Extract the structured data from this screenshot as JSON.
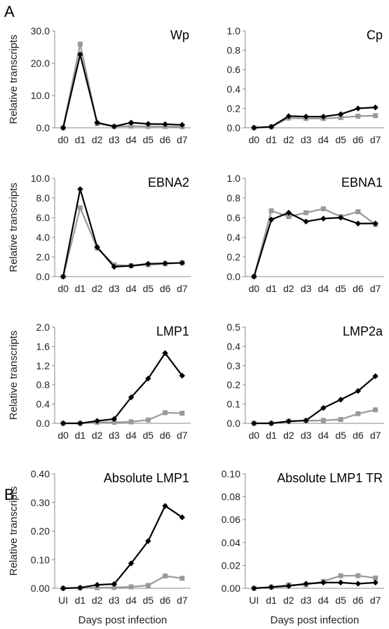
{
  "panel_labels": [
    "A",
    "B"
  ],
  "chart_data": [
    {
      "type": "line",
      "title": "Wp",
      "ylabel": "Relative transcripts",
      "xlabel": "",
      "categories": [
        "d0",
        "d1",
        "d2",
        "d3",
        "d4",
        "d5",
        "d6",
        "d7"
      ],
      "ylim": [
        0,
        30
      ],
      "yticks": [
        "0.0",
        "10.0",
        "20.0",
        "30.0"
      ],
      "grid": false,
      "series": [
        {
          "color": "#000000",
          "marker": "diamond",
          "values": [
            0,
            22.7,
            1.6,
            0.4,
            1.6,
            1.2,
            1.1,
            0.9
          ]
        },
        {
          "color": "#999999",
          "marker": "square",
          "values": [
            0,
            25.9,
            1.3,
            0.4,
            0.5,
            0.4,
            0.4,
            0.3
          ]
        }
      ]
    },
    {
      "type": "line",
      "title": "Cp",
      "ylabel": "",
      "xlabel": "",
      "categories": [
        "d0",
        "d1",
        "d2",
        "d3",
        "d4",
        "d5",
        "d6",
        "d7"
      ],
      "ylim": [
        0,
        1
      ],
      "yticks": [
        "0.0",
        "0.2",
        "0.4",
        "0.6",
        "0.8",
        "1.0"
      ],
      "grid": false,
      "series": [
        {
          "color": "#000000",
          "marker": "diamond",
          "values": [
            0,
            0.01,
            0.12,
            0.115,
            0.115,
            0.14,
            0.2,
            0.21
          ]
        },
        {
          "color": "#999999",
          "marker": "square",
          "values": [
            0,
            0.01,
            0.1,
            0.095,
            0.095,
            0.105,
            0.12,
            0.125
          ]
        }
      ]
    },
    {
      "type": "line",
      "title": "EBNA2",
      "ylabel": "Relative transcripts",
      "xlabel": "",
      "categories": [
        "d0",
        "d1",
        "d2",
        "d3",
        "d4",
        "d5",
        "d6",
        "d7"
      ],
      "ylim": [
        0,
        10
      ],
      "yticks": [
        "0.0",
        "2.0",
        "4.0",
        "6.0",
        "8.0",
        "10.0"
      ],
      "grid": false,
      "series": [
        {
          "color": "#000000",
          "marker": "diamond",
          "values": [
            0,
            8.9,
            3.0,
            1.0,
            1.1,
            1.3,
            1.35,
            1.4
          ]
        },
        {
          "color": "#999999",
          "marker": "square",
          "values": [
            0,
            7.0,
            2.9,
            1.2,
            1.1,
            1.2,
            1.3,
            1.4
          ]
        }
      ]
    },
    {
      "type": "line",
      "title": "EBNA1",
      "ylabel": "",
      "xlabel": "",
      "categories": [
        "d0",
        "d1",
        "d2",
        "d3",
        "d4",
        "d5",
        "d6",
        "d7"
      ],
      "ylim": [
        0,
        1
      ],
      "yticks": [
        "0.0",
        "0.2",
        "0.4",
        "0.6",
        "0.8",
        "1.0"
      ],
      "grid": false,
      "series": [
        {
          "color": "#000000",
          "marker": "diamond",
          "values": [
            0,
            0.58,
            0.65,
            0.56,
            0.59,
            0.6,
            0.54,
            0.54
          ]
        },
        {
          "color": "#999999",
          "marker": "square",
          "values": [
            0,
            0.67,
            0.61,
            0.65,
            0.69,
            0.61,
            0.66,
            0.53
          ]
        }
      ]
    },
    {
      "type": "line",
      "title": "LMP1",
      "ylabel": "Relative transcripts",
      "xlabel": "",
      "categories": [
        "d0",
        "d1",
        "d2",
        "d3",
        "d4",
        "d5",
        "d6",
        "d7"
      ],
      "ylim": [
        0,
        2
      ],
      "yticks": [
        "0.0",
        "0.4",
        "0.8",
        "1.2",
        "1.6",
        "2.0"
      ],
      "grid": false,
      "series": [
        {
          "color": "#000000",
          "marker": "diamond",
          "values": [
            0,
            0,
            0.05,
            0.09,
            0.54,
            0.93,
            1.46,
            0.99
          ]
        },
        {
          "color": "#999999",
          "marker": "square",
          "values": [
            0,
            0,
            0.02,
            0.02,
            0.03,
            0.07,
            0.22,
            0.21
          ]
        }
      ]
    },
    {
      "type": "line",
      "title": "LMP2a",
      "ylabel": "",
      "xlabel": "",
      "categories": [
        "d0",
        "d1",
        "d2",
        "d3",
        "d4",
        "d5",
        "d6",
        "d7"
      ],
      "ylim": [
        0,
        0.5
      ],
      "yticks": [
        "0.0",
        "0.1",
        "0.2",
        "0.3",
        "0.4",
        "0.5"
      ],
      "grid": false,
      "series": [
        {
          "color": "#000000",
          "marker": "diamond",
          "values": [
            0,
            0,
            0.01,
            0.015,
            0.08,
            0.123,
            0.168,
            0.245
          ]
        },
        {
          "color": "#999999",
          "marker": "square",
          "values": [
            0,
            0,
            0.012,
            0.013,
            0.015,
            0.02,
            0.05,
            0.07
          ]
        }
      ]
    },
    {
      "type": "line",
      "title": "Absolute LMP1",
      "ylabel": "Relative transcripts",
      "xlabel": "Days post infection",
      "categories": [
        "UI",
        "d1",
        "d2",
        "d3",
        "d4",
        "d5",
        "d6",
        "d7"
      ],
      "ylim": [
        0,
        0.4
      ],
      "yticks": [
        "0.00",
        "0.10",
        "0.20",
        "0.30",
        "0.40"
      ],
      "grid": false,
      "series": [
        {
          "color": "#000000",
          "marker": "diamond",
          "values": [
            0,
            0.002,
            0.012,
            0.015,
            0.087,
            0.165,
            0.288,
            0.248
          ]
        },
        {
          "color": "#999999",
          "marker": "square",
          "values": [
            0,
            0.001,
            0.002,
            0.003,
            0.005,
            0.01,
            0.043,
            0.035
          ]
        }
      ]
    },
    {
      "type": "line",
      "title": "Absolute LMP1 TR",
      "ylabel": "",
      "xlabel": "Days post infection",
      "categories": [
        "UI",
        "d1",
        "d2",
        "d3",
        "d4",
        "d5",
        "d6",
        "d7"
      ],
      "ylim": [
        0,
        0.1
      ],
      "yticks": [
        "0.00",
        "0.02",
        "0.04",
        "0.06",
        "0.08",
        "0.10"
      ],
      "grid": false,
      "series": [
        {
          "color": "#000000",
          "marker": "diamond",
          "values": [
            0,
            0.001,
            0.002,
            0.004,
            0.005,
            0.005,
            0.004,
            0.005
          ]
        },
        {
          "color": "#999999",
          "marker": "square",
          "values": [
            0,
            0.001,
            0.003,
            0.003,
            0.006,
            0.011,
            0.011,
            0.009
          ]
        }
      ]
    }
  ]
}
